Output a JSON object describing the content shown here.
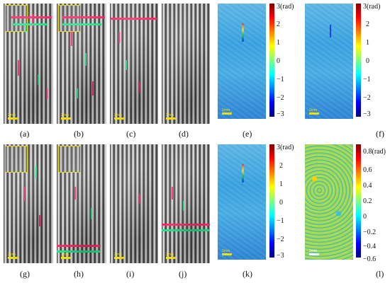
{
  "figure": {
    "panel_labels": [
      "(a)",
      "(b)",
      "(c)",
      "(d)",
      "(e)",
      "(f)",
      "(g)",
      "(h)",
      "(i)",
      "(j)",
      "(k)",
      "(l)"
    ],
    "scalebar_text": "2mm",
    "colorbars": [
      {
        "unit_label": "3(rad)",
        "ticks": [
          "2",
          "1",
          "0",
          "−1",
          "−2",
          "−3"
        ]
      },
      {
        "unit_label": "3(rad)",
        "ticks": [
          "2",
          "1",
          "0",
          "−1",
          "−2",
          "−3"
        ]
      },
      {
        "unit_label": "3(rad)",
        "ticks": [
          "2",
          "1",
          "0",
          "−1",
          "−2",
          "−3"
        ]
      },
      {
        "unit_label": "0.8(rad)",
        "ticks": [
          "0.6",
          "0.4",
          "0.2",
          "0",
          "−0.2",
          "−0.4",
          "−0.6"
        ]
      }
    ],
    "colors": {
      "defect_red": "#ff2a6a",
      "defect_green": "#23e08a",
      "scalebar": "#f4e200"
    }
  }
}
